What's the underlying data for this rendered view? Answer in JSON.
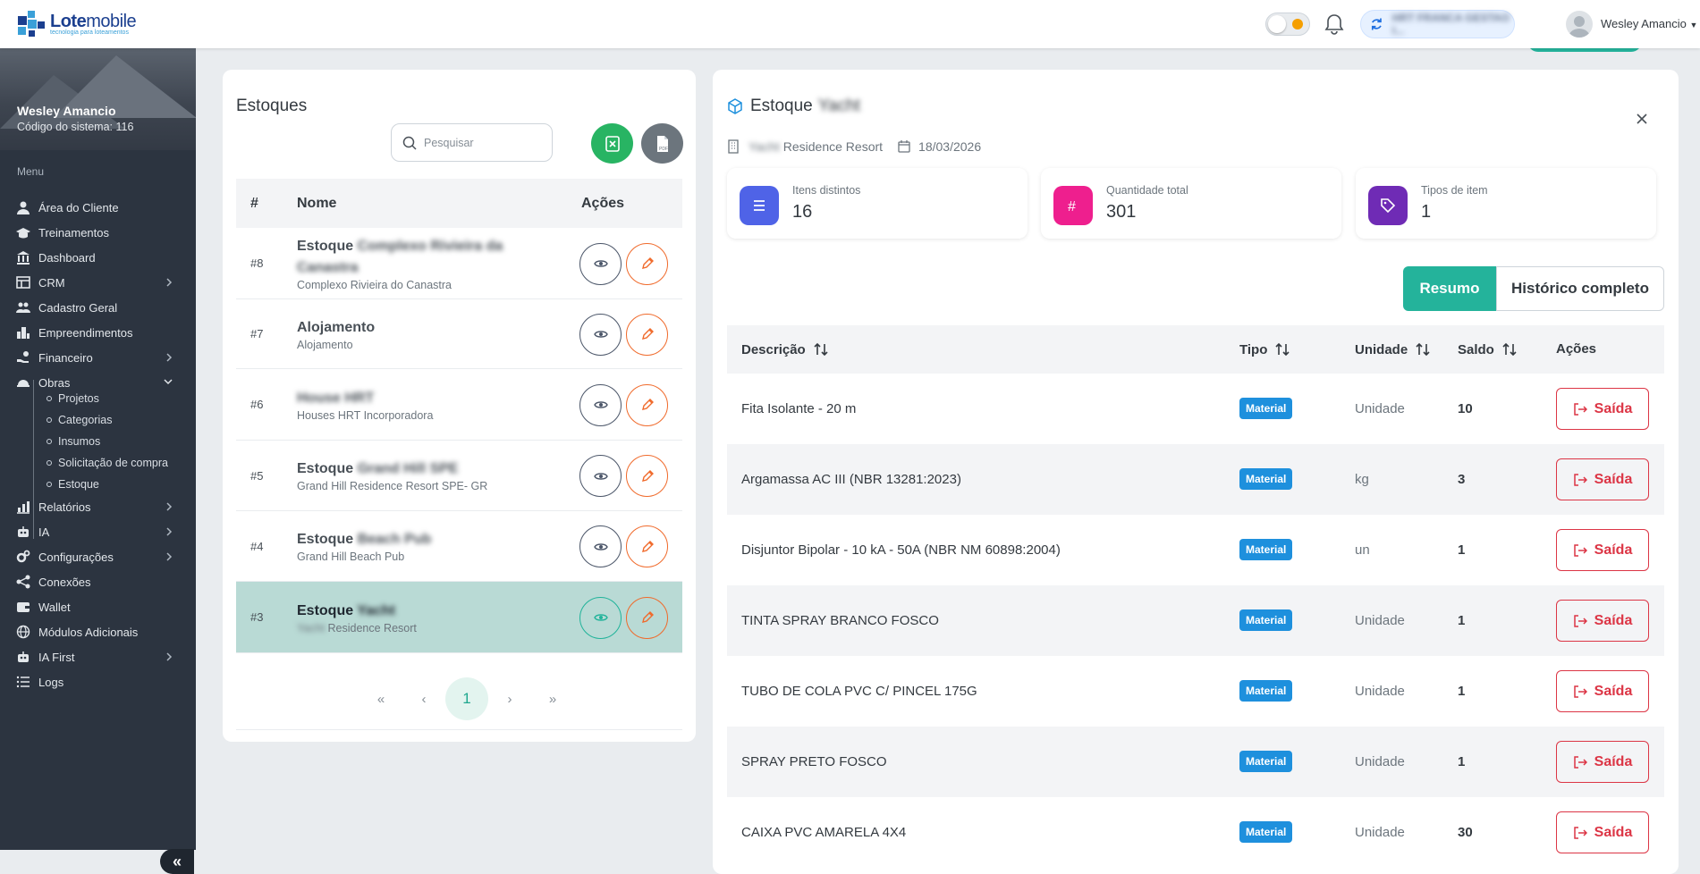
{
  "brand": {
    "name_bold": "Lote",
    "name_light": "mobile",
    "tagline": "tecnologia para loteamentos"
  },
  "topbar": {
    "company": "HRT FRANCA GESTAO I...",
    "user": "Wesley Amancio"
  },
  "sidebar": {
    "user_name": "Wesley Amancio",
    "system_code": "Código do sistema: 116",
    "menu_label": "Menu",
    "items": [
      {
        "label": "Área do Cliente",
        "icon": "user-icon"
      },
      {
        "label": "Treinamentos",
        "icon": "graduation-cap-icon"
      },
      {
        "label": "Dashboard",
        "icon": "bank-icon"
      },
      {
        "label": "CRM",
        "icon": "table-icon"
      },
      {
        "label": "Cadastro Geral",
        "icon": "users-icon"
      },
      {
        "label": "Empreendimentos",
        "icon": "city-icon"
      },
      {
        "label": "Financeiro",
        "icon": "hand-coins-icon"
      },
      {
        "label": "Obras",
        "icon": "helmet-icon"
      },
      {
        "label": "Relatórios",
        "icon": "chart-icon"
      },
      {
        "label": "IA",
        "icon": "robot-icon"
      },
      {
        "label": "Configurações",
        "icon": "gears-icon"
      },
      {
        "label": "Conexões",
        "icon": "share-icon"
      },
      {
        "label": "Wallet",
        "icon": "wallet-icon"
      },
      {
        "label": "Módulos Adicionais",
        "icon": "globe-icon"
      },
      {
        "label": "IA First",
        "icon": "robot-icon"
      },
      {
        "label": "Logs",
        "icon": "list-icon"
      }
    ],
    "obras_sub": [
      "Projetos",
      "Categorias",
      "Insumos",
      "Solicitação de compra",
      "Estoque"
    ]
  },
  "estoques": {
    "title": "Estoques",
    "search_placeholder": "Pesquisar",
    "headers": {
      "num": "#",
      "name": "Nome",
      "actions": "Ações"
    },
    "rows": [
      {
        "num": "#8",
        "prefix": "Estoque ",
        "hidden": "Complexo Rivieira da Canastra",
        "sub": "Complexo Rivieira do Canastra",
        "sub_hidden": ""
      },
      {
        "num": "#7",
        "prefix": "Alojamento",
        "hidden": "",
        "sub": "Alojamento",
        "sub_hidden": ""
      },
      {
        "num": "#6",
        "prefix": "",
        "hidden": "House HRT",
        "sub": "Houses HRT Incorporadora",
        "sub_hidden": ""
      },
      {
        "num": "#5",
        "prefix": "Estoque ",
        "hidden": "Grand Hill SPE",
        "sub": "Grand Hill Residence Resort SPE- GR",
        "sub_hidden": ""
      },
      {
        "num": "#4",
        "prefix": "Estoque ",
        "hidden": "Beach Pub",
        "sub": "Grand Hill Beach Pub",
        "sub_hidden": ""
      },
      {
        "num": "#3",
        "prefix": "Estoque ",
        "hidden": "Yacht",
        "sub": " Residence Resort",
        "sub_hidden": "Yacht"
      }
    ],
    "page": "1"
  },
  "detail": {
    "title_prefix": "Estoque",
    "title_hidden": "Yacht",
    "location_hidden": "Yacht",
    "location": "Residence Resort",
    "date": "18/03/2026",
    "stats": [
      {
        "label": "Itens distintos",
        "value": "16",
        "color": "#4f63e7"
      },
      {
        "label": "Quantidade total",
        "value": "301",
        "color": "#ee1f8e"
      },
      {
        "label": "Tipos de item",
        "value": "1",
        "color": "#6f2bb5"
      }
    ],
    "tab_resumo": "Resumo",
    "tab_historico": "Histórico completo",
    "headers": {
      "desc": "Descrição",
      "tipo": "Tipo",
      "unidade": "Unidade",
      "saldo": "Saldo",
      "acoes": "Ações"
    },
    "rows": [
      {
        "desc": "Fita Isolante - 20 m",
        "tipo": "Material",
        "unidade": "Unidade",
        "saldo": "10"
      },
      {
        "desc": "Argamassa AC III (NBR 13281:2023)",
        "tipo": "Material",
        "unidade": "kg",
        "saldo": "3"
      },
      {
        "desc": "Disjuntor Bipolar - 10 kA - 50A (NBR NM 60898:2004)",
        "tipo": "Material",
        "unidade": "un",
        "saldo": "1"
      },
      {
        "desc": "TINTA SPRAY BRANCO FOSCO",
        "tipo": "Material",
        "unidade": "Unidade",
        "saldo": "1"
      },
      {
        "desc": "TUBO DE COLA PVC C/ PINCEL 175G",
        "tipo": "Material",
        "unidade": "Unidade",
        "saldo": "1"
      },
      {
        "desc": "SPRAY PRETO FOSCO",
        "tipo": "Material",
        "unidade": "Unidade",
        "saldo": "1"
      },
      {
        "desc": "CAIXA PVC AMARELA 4X4",
        "tipo": "Material",
        "unidade": "Unidade",
        "saldo": "30"
      }
    ],
    "exit_label": "Saída"
  }
}
